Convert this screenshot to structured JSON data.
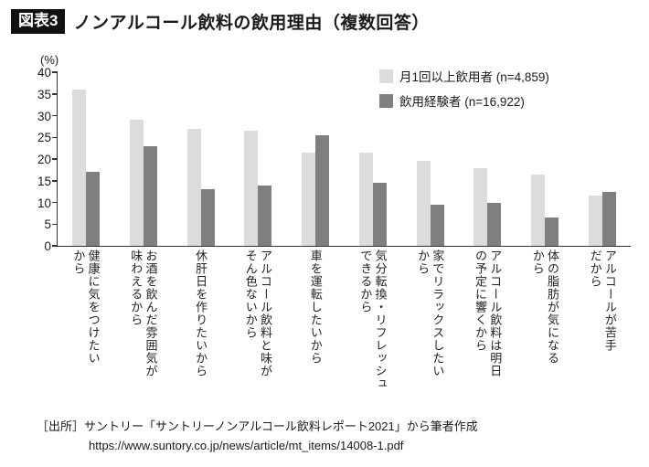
{
  "header": {
    "badge": "図表3",
    "title": "ノンアルコール飲料の飲用理由（複数回答）"
  },
  "chart_data": {
    "type": "bar",
    "title": "ノンアルコール飲料の飲用理由（複数回答）",
    "unit_label": "(%)",
    "xlabel": "",
    "ylabel": "(%)",
    "ylim": [
      0,
      40
    ],
    "yticks": [
      40,
      35,
      30,
      25,
      20,
      15,
      10,
      5,
      0
    ],
    "grid": false,
    "legend_position": "top-right",
    "categories": [
      "健康に気をつけたい\nから",
      "お酒を飲んだ雰囲気が\n味わえるから",
      "休肝日を作りたいから",
      "アルコール飲料と味が\nそん色ないから",
      "車を運転したいから",
      "気分転換・リフレッシュ\nできるから",
      "家でリラックスしたい\nから",
      "アルコール飲料は明日\nの予定に響くから",
      "体の脂肪が気になる\nから",
      "アルコールが苦手\nだから"
    ],
    "series": [
      {
        "name": "月1回以上飲用者 (n=4,859)",
        "color": "#dcdcdc",
        "values": [
          36,
          29,
          27,
          26.5,
          21.5,
          21.5,
          19.5,
          18,
          16.5,
          11.5
        ]
      },
      {
        "name": "飲用経験者 (n=16,922)",
        "color": "#7f7f7f",
        "values": [
          17,
          23,
          13,
          14,
          25.5,
          14.5,
          9.5,
          10,
          6.5,
          12.5
        ]
      }
    ]
  },
  "footer": {
    "source_line1": "［出所］サントリー「サントリーノンアルコール飲料レポート2021」から筆者作成",
    "source_line2": "https://www.suntory.co.jp/news/article/mt_items/14008-1.pdf"
  }
}
